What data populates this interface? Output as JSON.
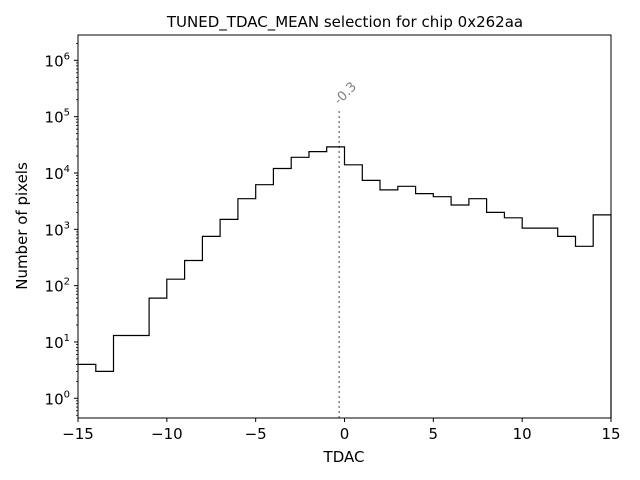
{
  "chart_data": {
    "type": "step",
    "title": "TUNED_TDAC_MEAN selection for chip 0x262aa",
    "xlabel": "TDAC",
    "ylabel": "Number of pixels",
    "xlim": [
      -15,
      15
    ],
    "ylim_log10": [
      -0.35,
      6.45
    ],
    "yscale": "log",
    "x_ticks": [
      {
        "value": -15,
        "label": "−15"
      },
      {
        "value": -10,
        "label": "−10"
      },
      {
        "value": -5,
        "label": "−5"
      },
      {
        "value": 0,
        "label": "0"
      },
      {
        "value": 5,
        "label": "5"
      },
      {
        "value": 10,
        "label": "10"
      },
      {
        "value": 15,
        "label": "15"
      }
    ],
    "y_ticks": [
      {
        "exp": 0,
        "base": "10",
        "sup": "0"
      },
      {
        "exp": 1,
        "base": "10",
        "sup": "1"
      },
      {
        "exp": 2,
        "base": "10",
        "sup": "2"
      },
      {
        "exp": 3,
        "base": "10",
        "sup": "3"
      },
      {
        "exp": 4,
        "base": "10",
        "sup": "4"
      },
      {
        "exp": 5,
        "base": "10",
        "sup": "5"
      },
      {
        "exp": 6,
        "base": "10",
        "sup": "6"
      }
    ],
    "bins": [
      {
        "x0": -15,
        "x1": -14,
        "count": 4
      },
      {
        "x0": -14,
        "x1": -13,
        "count": 3
      },
      {
        "x0": -13,
        "x1": -11,
        "count": 13
      },
      {
        "x0": -11,
        "x1": -10,
        "count": 60
      },
      {
        "x0": -10,
        "x1": -9,
        "count": 130
      },
      {
        "x0": -9,
        "x1": -8,
        "count": 280
      },
      {
        "x0": -8,
        "x1": -7,
        "count": 750
      },
      {
        "x0": -7,
        "x1": -6,
        "count": 1500
      },
      {
        "x0": -6,
        "x1": -5,
        "count": 3500
      },
      {
        "x0": -5,
        "x1": -4,
        "count": 6200
      },
      {
        "x0": -4,
        "x1": -3,
        "count": 12000
      },
      {
        "x0": -3,
        "x1": -2,
        "count": 19000
      },
      {
        "x0": -2,
        "x1": -1,
        "count": 24000
      },
      {
        "x0": -1,
        "x1": 0,
        "count": 29000
      },
      {
        "x0": 0,
        "x1": 1,
        "count": 14000
      },
      {
        "x0": 1,
        "x1": 2,
        "count": 7400
      },
      {
        "x0": 2,
        "x1": 3,
        "count": 5000
      },
      {
        "x0": 3,
        "x1": 4,
        "count": 5800
      },
      {
        "x0": 4,
        "x1": 5,
        "count": 4300
      },
      {
        "x0": 5,
        "x1": 6,
        "count": 3800
      },
      {
        "x0": 6,
        "x1": 7,
        "count": 2700
      },
      {
        "x0": 7,
        "x1": 8,
        "count": 3500
      },
      {
        "x0": 8,
        "x1": 9,
        "count": 2000
      },
      {
        "x0": 9,
        "x1": 10,
        "count": 1600
      },
      {
        "x0": 10,
        "x1": 12,
        "count": 1050
      },
      {
        "x0": 12,
        "x1": 13,
        "count": 750
      },
      {
        "x0": 13,
        "x1": 14,
        "count": 500
      },
      {
        "x0": 14,
        "x1": 15,
        "count": 1800
      }
    ],
    "marker": {
      "x": -0.3,
      "label": "-0.3",
      "y_top": 130000,
      "color": "#808080"
    },
    "line_color": "#000000"
  }
}
